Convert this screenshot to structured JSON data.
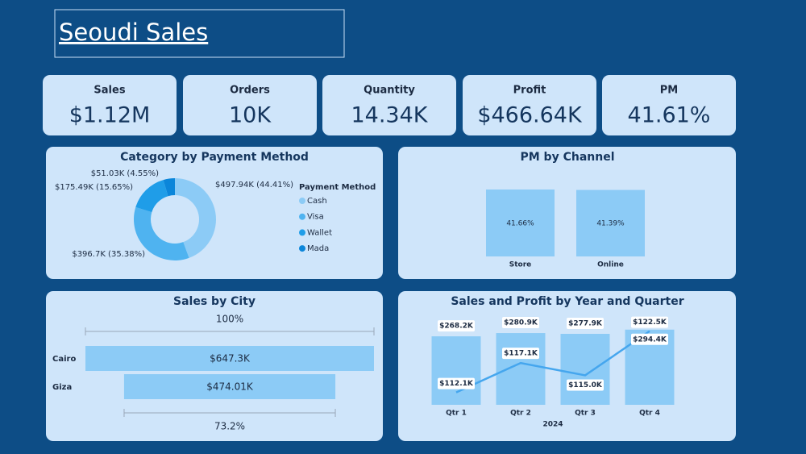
{
  "title": "Seoudi Sales",
  "kpis": [
    {
      "label": "Sales",
      "value": "$1.12M"
    },
    {
      "label": "Orders",
      "value": "10K"
    },
    {
      "label": "Quantity",
      "value": "14.34K"
    },
    {
      "label": "Profit",
      "value": "$466.64K"
    },
    {
      "label": "PM",
      "value": "41.61%"
    }
  ],
  "chart_data": [
    {
      "type": "pie",
      "title": "Category by Payment Method",
      "legend_title": "Payment Method",
      "categories": [
        "Cash",
        "Visa",
        "Wallet",
        "Mada"
      ],
      "values": [
        497940,
        396700,
        175490,
        51030
      ],
      "value_labels": [
        "$497.94K (44.41%)",
        "$396.7K (35.38%)",
        "$175.49K (15.65%)",
        "$51.03K (4.55%)"
      ],
      "colors": [
        "#8ccbf6",
        "#4fb3f0",
        "#1f9de8",
        "#0b86da"
      ]
    },
    {
      "type": "bar",
      "title": "PM by Channel",
      "categories": [
        "Store",
        "Online"
      ],
      "values": [
        41.66,
        41.39
      ],
      "value_labels": [
        "41.66%",
        "41.39%"
      ],
      "color": "#8ccbf6"
    },
    {
      "type": "funnel",
      "title": "Sales by City",
      "categories": [
        "Cairo",
        "Giza"
      ],
      "values": [
        647300,
        474010
      ],
      "value_labels": [
        "$647.3K",
        "$474.01K"
      ],
      "color": "#8ccbf6",
      "percents": [
        {
          "value": 100,
          "label": "100%"
        },
        {
          "value": 73.2,
          "label": "73.2%"
        }
      ]
    },
    {
      "type": "combo",
      "title": "Sales and Profit by Year and Quarter",
      "categories": [
        "Qtr 1",
        "Qtr 2",
        "Qtr 3",
        "Qtr 4"
      ],
      "x_group": "2024",
      "ylim": [
        0,
        300000
      ],
      "y2lim": [
        110000,
        123000
      ],
      "series": [
        {
          "type": "bar",
          "color": "#8ccbf6",
          "values": [
            268200,
            280900,
            277900,
            294400
          ],
          "value_labels": [
            "$268.2K",
            "$280.9K",
            "$277.9K",
            "$294.4K"
          ]
        },
        {
          "type": "line",
          "axis": "y2",
          "color": "#45a6ee",
          "values": [
            112100,
            117100,
            115000,
            122500
          ],
          "value_labels": [
            "$112.1K",
            "$117.1K",
            "$115.0K",
            "$122.5K"
          ]
        }
      ]
    }
  ]
}
